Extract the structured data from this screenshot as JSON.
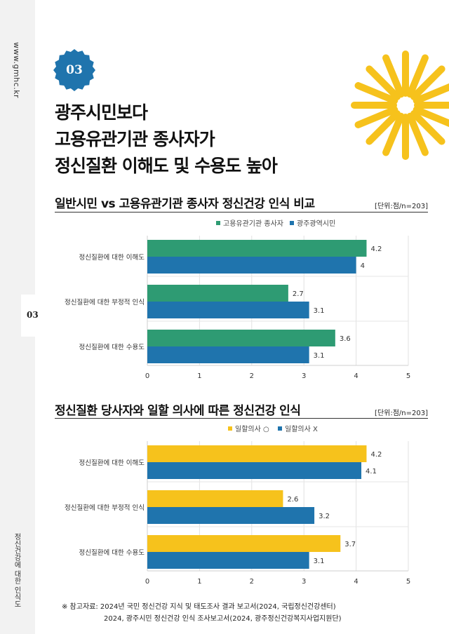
{
  "side": {
    "url": "www.gmhc.kr",
    "num": "03",
    "title": "정신건강에 대한 인식도"
  },
  "badge": {
    "num": "03"
  },
  "headline": [
    "광주시민보다",
    "고용유관기관 종사자가",
    "정신질환 이해도 및 수용도 높아"
  ],
  "colors": {
    "blue": "#1f74ad",
    "green": "#2e9b73",
    "yellow": "#f6c21c"
  },
  "sections": [
    {
      "title": "일반시민 vs 고용유관기관 종사자 정신건강 인식 비교",
      "unit": "[단위:점/n=203]"
    },
    {
      "title": "정신질환 당사자와 일할 의사에 따른 정신건강 인식",
      "unit": "[단위:점/n=203]"
    }
  ],
  "chart_data": [
    {
      "type": "bar",
      "orientation": "horizontal",
      "categories": [
        "정신질환에 대한 이해도",
        "정신질환에 대한 부정적 인식",
        "정신질환에 대한 수용도"
      ],
      "series": [
        {
          "name": "고용유관기관 종사자",
          "values": [
            4.2,
            2.7,
            3.6
          ],
          "color": "#2e9b73"
        },
        {
          "name": "광주광역시민",
          "values": [
            4,
            3.1,
            3.1
          ],
          "color": "#1f74ad"
        }
      ],
      "xlim": [
        0,
        5
      ],
      "xticks": [
        0,
        1,
        2,
        3,
        4,
        5
      ],
      "legend": "top-center",
      "grid": true
    },
    {
      "type": "bar",
      "orientation": "horizontal",
      "categories": [
        "정신질환에 대한 이해도",
        "정신질환에 대한 부정적 인식",
        "정신질환에 대한 수용도"
      ],
      "series": [
        {
          "name": "일할의사 ○",
          "values": [
            4.2,
            2.6,
            3.7
          ],
          "color": "#f6c21c"
        },
        {
          "name": "일할의사 X",
          "values": [
            4.1,
            3.2,
            3.1
          ],
          "color": "#1f74ad"
        }
      ],
      "xlim": [
        0,
        5
      ],
      "xticks": [
        0,
        1,
        2,
        3,
        4,
        5
      ],
      "legend": "top-center",
      "grid": true
    }
  ],
  "notes": [
    "※ 참고자료:  2024년 국민 정신건강 지식 및 태도조사 결과 보고서(2024, 국립정신건강센터)",
    "2024, 광주시민 정신건강 인식 조사보고서(2024, 광주정신건강복지사업지원단)"
  ]
}
